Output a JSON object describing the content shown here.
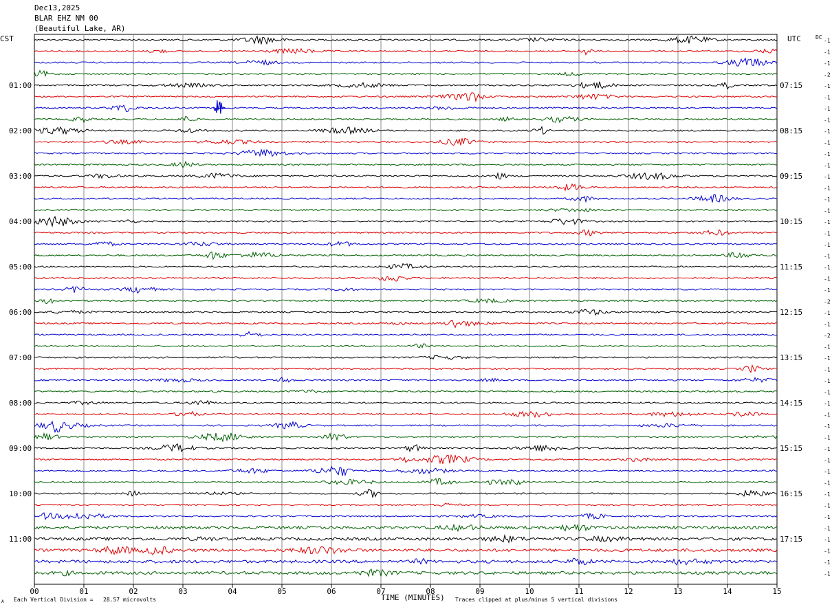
{
  "header": {
    "date": "Dec13,2025",
    "station": "BLAR EHZ NM 00",
    "location": "(Beautiful Lake, AR)"
  },
  "left_timezone": "CST",
  "right_timezone": "UTC",
  "dc_label": "DC",
  "footer": {
    "division_note": "Each Vertical Division =   28.57 microvolts",
    "clip_note": "Traces clipped at plus/minus 5 vertical divisions",
    "corner_mark": "A"
  },
  "chart_data": {
    "type": "line",
    "xlabel": "TIME (MINUTES)",
    "x_ticks": [
      "00",
      "01",
      "02",
      "03",
      "04",
      "05",
      "06",
      "07",
      "08",
      "09",
      "10",
      "11",
      "12",
      "13",
      "14",
      "15"
    ],
    "xlim": [
      0,
      15
    ],
    "left_time_labels": [
      "01:00",
      "02:00",
      "03:00",
      "04:00",
      "05:00",
      "06:00",
      "07:00",
      "08:00",
      "09:00",
      "10:00",
      "11:00"
    ],
    "right_time_labels": [
      "07:15",
      "08:15",
      "09:15",
      "10:15",
      "11:15",
      "12:15",
      "13:15",
      "14:15",
      "15:15",
      "16:15",
      "17:15"
    ],
    "trace_colors": [
      "#000000",
      "#e00000",
      "#0000d0",
      "#006000"
    ],
    "dc_offsets": [
      "-1",
      "-1",
      "-1",
      "-2",
      "-1",
      "-1",
      "-1",
      "-1",
      "-1",
      "-1",
      "-1",
      "-1",
      "-1",
      "-1",
      "-1",
      "-1",
      "-1",
      "-1",
      "-1",
      "-1",
      "-1",
      "-1",
      "-1",
      "-2",
      "-1",
      "-1",
      "-2",
      "-1",
      "-1",
      "-1",
      "-1",
      "-1",
      "-1",
      "-1",
      "-1",
      "-1",
      "-1",
      "-1",
      "-1",
      "-1",
      "-1",
      "-1",
      "-1",
      "-1",
      "-1",
      "-1",
      "-1",
      "-1"
    ],
    "grid": true
  }
}
